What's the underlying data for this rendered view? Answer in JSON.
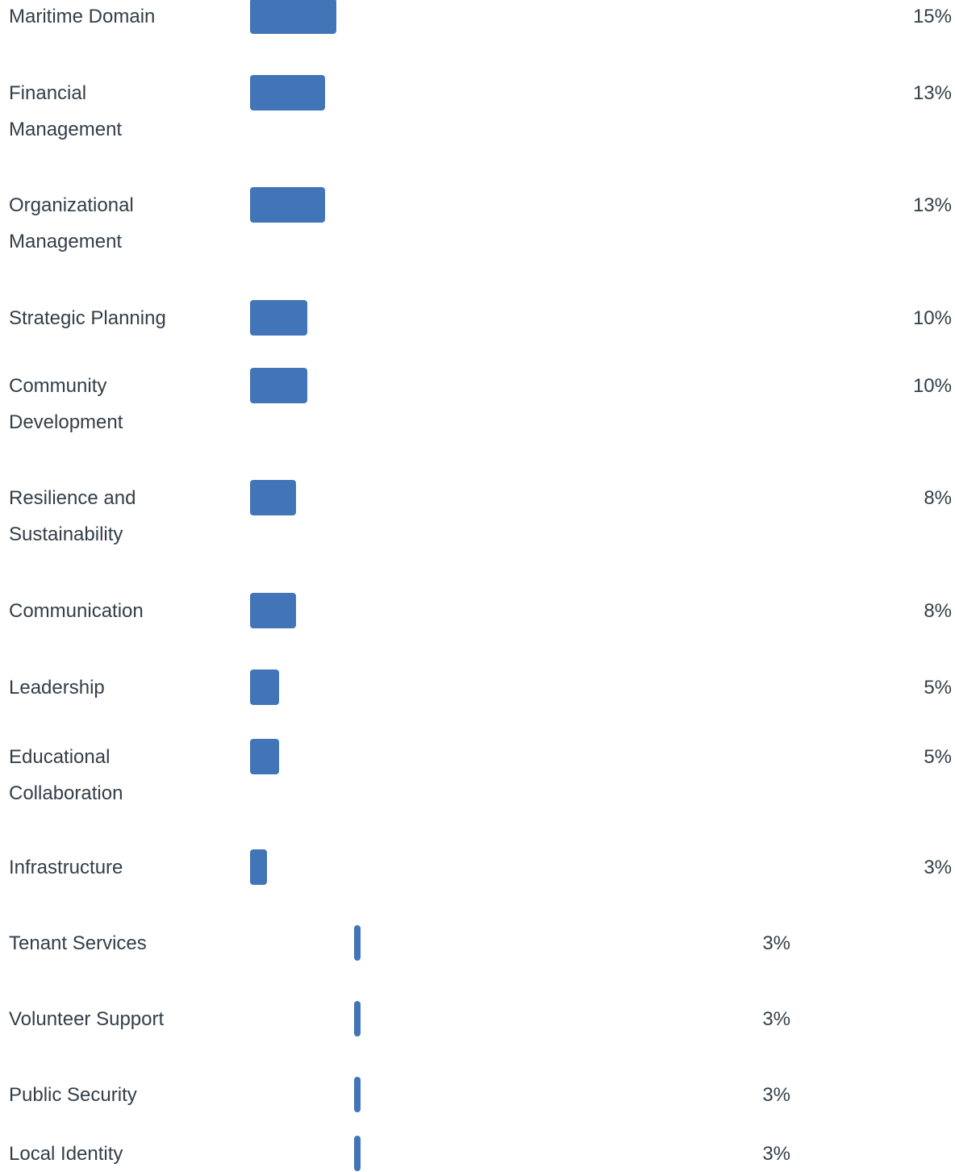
{
  "chart_data": {
    "type": "bar",
    "orientation": "horizontal",
    "color": "#4175b8",
    "categories": [
      "Maritime Domain",
      "Financial Management",
      "Organizational Management",
      "Strategic Planning",
      "Community Development",
      "Resilience and Sustainability",
      "Communication",
      "Leadership",
      "Educational Collaboration",
      "Infrastructure",
      "Tenant Services",
      "Volunteer Support",
      "Public Security",
      "Local Identity"
    ],
    "values": [
      15,
      13,
      13,
      10,
      10,
      8,
      8,
      5,
      5,
      3,
      3,
      3,
      3,
      3
    ],
    "value_labels": [
      "15%",
      "13%",
      "13%",
      "10%",
      "10%",
      "8%",
      "8%",
      "5%",
      "5%",
      "3%",
      "3%",
      "3%",
      "3%",
      "3%"
    ]
  }
}
